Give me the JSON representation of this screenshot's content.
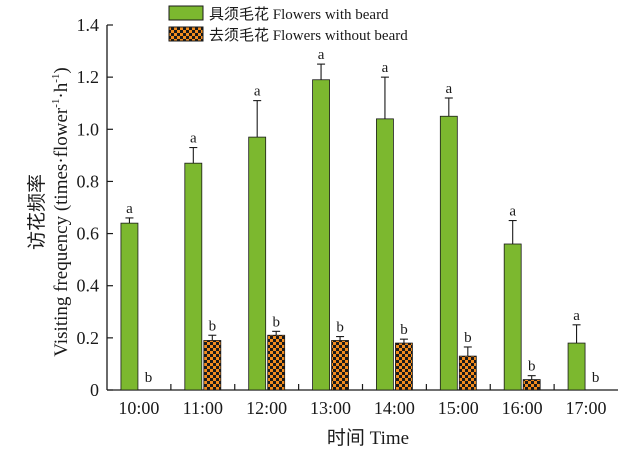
{
  "chart_data": {
    "type": "bar",
    "title": "",
    "xlabel": "时间 Time",
    "ylabel_cn": "访花频率",
    "ylabel_en": "Visiting frequency (times·flower",
    "ylabel_sup1": "-1",
    "ylabel_mid": "·h",
    "ylabel_sup2": "-1",
    "ylabel_end": ")",
    "ylim": [
      0,
      1.4
    ],
    "yticks": [
      "0",
      "0.2",
      "0.4",
      "0.6",
      "0.8",
      "1.0",
      "1.2",
      "1.4"
    ],
    "categories": [
      "10:00",
      "11:00",
      "12:00",
      "13:00",
      "14:00",
      "15:00",
      "16:00",
      "17:00"
    ],
    "legend_position": "top-center",
    "series": [
      {
        "name": "具须毛花 Flowers with beard",
        "color": "#7cb82f",
        "pattern": "solid",
        "values": [
          0.64,
          0.87,
          0.97,
          1.19,
          1.04,
          1.05,
          0.56,
          0.18
        ],
        "errors": [
          0.02,
          0.06,
          0.14,
          0.06,
          0.16,
          0.07,
          0.09,
          0.07
        ],
        "significance": [
          "a",
          "a",
          "a",
          "a",
          "a",
          "a",
          "a",
          "a"
        ]
      },
      {
        "name": "去须毛花 Flowers without beard",
        "color": "#f28c1e",
        "pattern": "checker",
        "values": [
          0,
          0.19,
          0.21,
          0.19,
          0.18,
          0.13,
          0.04,
          0
        ],
        "errors": [
          0,
          0.02,
          0.015,
          0.015,
          0.015,
          0.035,
          0.015,
          0
        ],
        "significance": [
          "b",
          "b",
          "b",
          "b",
          "b",
          "b",
          "b",
          "b"
        ]
      }
    ]
  }
}
